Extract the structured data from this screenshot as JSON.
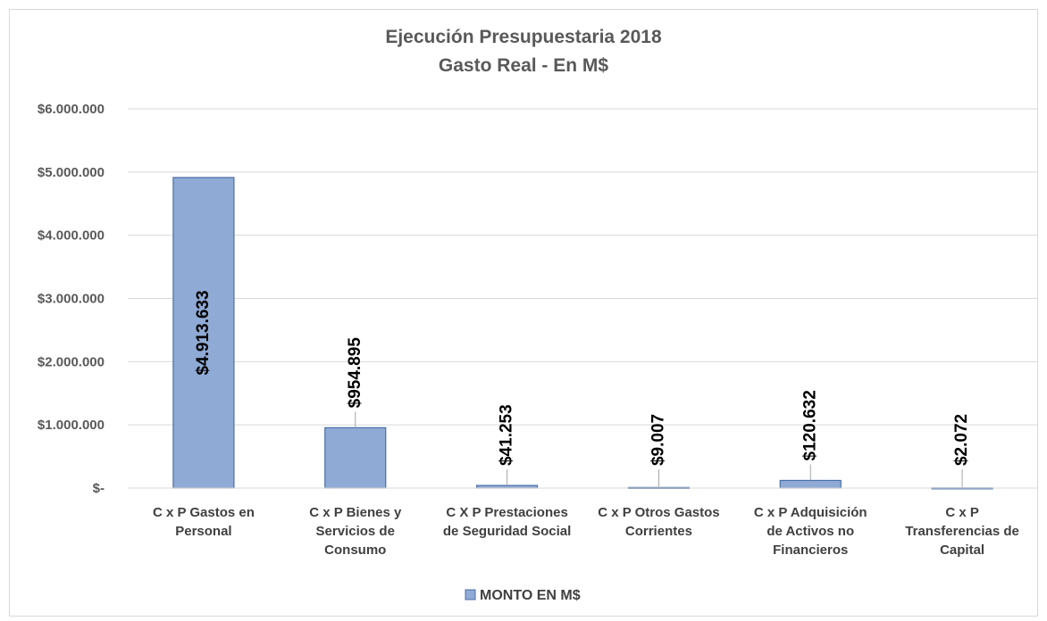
{
  "chart_data": {
    "type": "bar",
    "title": "Ejecución Presupuestaria 2018",
    "subtitle": "Gasto Real - En M$",
    "categories": [
      "C x P Gastos en\nPersonal",
      "C x P Bienes y\nServicios de\nConsumo",
      "C X P Prestaciones\nde Seguridad Social",
      "C x P Otros Gastos\nCorrientes",
      "C x P Adquisición\nde Activos no\nFinancieros",
      "C x P\nTransferencias de\nCapital"
    ],
    "series": [
      {
        "name": "MONTO EN M$",
        "color": "#8faad4",
        "values": [
          4913633,
          954895,
          41253,
          9007,
          120632,
          2072
        ],
        "value_labels": [
          "$4.913.633",
          "$954.895",
          "$41.253",
          "$9.007",
          "$120.632",
          "$2.072"
        ]
      }
    ],
    "ylim": [
      0,
      6000000
    ],
    "yticks": [
      {
        "value": 0,
        "label": "$-"
      },
      {
        "value": 1000000,
        "label": "$1.000.000"
      },
      {
        "value": 2000000,
        "label": "$2.000.000"
      },
      {
        "value": 3000000,
        "label": "$3.000.000"
      },
      {
        "value": 4000000,
        "label": "$4.000.000"
      },
      {
        "value": 5000000,
        "label": "$5.000.000"
      },
      {
        "value": 6000000,
        "label": "$6.000.000"
      }
    ],
    "grid": true,
    "legend": "bottom"
  }
}
